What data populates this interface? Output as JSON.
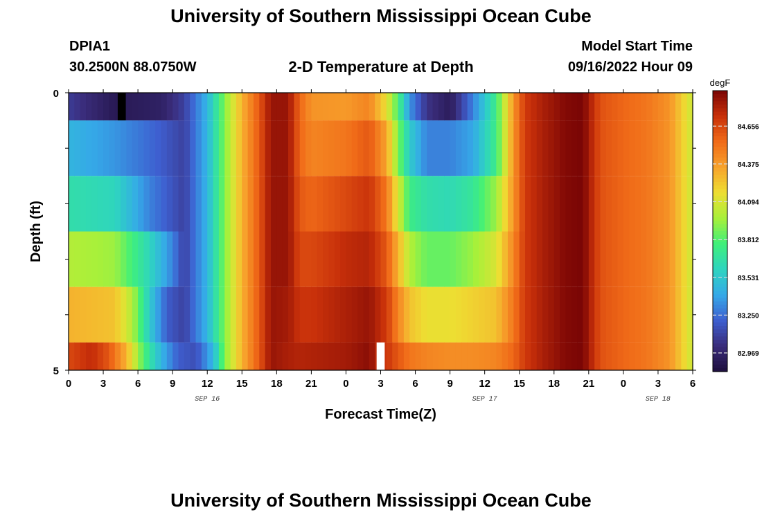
{
  "page": {
    "title_top": "University of Southern Mississippi Ocean Cube",
    "title_bottom": "University of Southern Mississippi Ocean Cube",
    "station_id": "DPIA1",
    "station_coords": "30.2500N  88.0750W",
    "plot_title": "2-D Temperature at Depth",
    "model_start_label": "Model Start Time",
    "model_start_value": "09/16/2022 Hour 09"
  },
  "chart_data": {
    "type": "heatmap",
    "title": "2-D Temperature at Depth",
    "xlabel": "Forecast Time(Z)",
    "ylabel": "Depth (ft)",
    "colorbar_unit": "degF",
    "colorbar_ticks": [
      82.969,
      83.25,
      83.531,
      83.812,
      84.094,
      84.375,
      84.656
    ],
    "color_range": [
      82.83,
      84.92
    ],
    "colors": [
      "#1e0f3e",
      "#3a2c7a",
      "#3e5fd0",
      "#35a9e8",
      "#2ed4c0",
      "#3ff07a",
      "#a8f03a",
      "#eede32",
      "#f7a22c",
      "#f06a18",
      "#c8300a",
      "#7a0505"
    ],
    "x_ticks": [
      "0",
      "3",
      "6",
      "9",
      "12",
      "15",
      "18",
      "21",
      "0",
      "3",
      "6",
      "9",
      "12",
      "15",
      "18",
      "21",
      "0",
      "3",
      "6"
    ],
    "x_range_hours": [
      0,
      54
    ],
    "date_labels": [
      {
        "label": "SEP 16",
        "hour": 12
      },
      {
        "label": "SEP 17",
        "hour": 36
      },
      {
        "label": "SEP 18",
        "hour": 51
      }
    ],
    "y_ticks": [
      "0",
      "5"
    ],
    "y_range": [
      0,
      5
    ],
    "grid": false,
    "layers": [
      {
        "depth_range": [
          0,
          0.5
        ],
        "profile": [
          [
            0,
            83.08
          ],
          [
            4,
            82.9
          ],
          [
            8,
            82.95
          ],
          [
            10,
            83.1
          ],
          [
            12,
            83.45
          ],
          [
            13.5,
            83.9
          ],
          [
            15,
            84.3
          ],
          [
            16.5,
            84.6
          ],
          [
            17.5,
            84.85
          ],
          [
            19,
            84.85
          ],
          [
            20,
            84.55
          ],
          [
            21,
            84.4
          ],
          [
            24,
            84.38
          ],
          [
            26,
            84.45
          ],
          [
            27.5,
            84.15
          ],
          [
            28.5,
            83.8
          ],
          [
            29.5,
            83.35
          ],
          [
            31,
            83.05
          ],
          [
            33,
            82.92
          ],
          [
            35,
            83.3
          ],
          [
            37,
            83.75
          ],
          [
            38.5,
            84.4
          ],
          [
            39.5,
            84.7
          ],
          [
            41,
            84.8
          ],
          [
            43,
            84.9
          ],
          [
            44.5,
            84.92
          ],
          [
            46,
            84.62
          ],
          [
            48,
            84.55
          ],
          [
            50,
            84.5
          ],
          [
            52,
            84.4
          ],
          [
            54,
            84.05
          ]
        ],
        "missing": [
          {
            "hour": 4.6,
            "value": "low"
          }
        ]
      },
      {
        "depth_range": [
          0.5,
          1.5
        ],
        "profile": [
          [
            0,
            83.45
          ],
          [
            4,
            83.35
          ],
          [
            8,
            83.2
          ],
          [
            10,
            83.1
          ],
          [
            12,
            83.45
          ],
          [
            13.5,
            83.9
          ],
          [
            15,
            84.3
          ],
          [
            16.5,
            84.6
          ],
          [
            17.5,
            84.85
          ],
          [
            19,
            84.85
          ],
          [
            20,
            84.55
          ],
          [
            21,
            84.45
          ],
          [
            24,
            84.5
          ],
          [
            26,
            84.6
          ],
          [
            27.5,
            84.35
          ],
          [
            28.5,
            83.9
          ],
          [
            29.5,
            83.55
          ],
          [
            31,
            83.3
          ],
          [
            33,
            83.3
          ],
          [
            35,
            83.4
          ],
          [
            37,
            83.75
          ],
          [
            38.5,
            84.4
          ],
          [
            39.5,
            84.7
          ],
          [
            41,
            84.8
          ],
          [
            43,
            84.9
          ],
          [
            44.5,
            84.92
          ],
          [
            46,
            84.62
          ],
          [
            48,
            84.55
          ],
          [
            50,
            84.5
          ],
          [
            52,
            84.4
          ],
          [
            54,
            84.05
          ]
        ]
      },
      {
        "depth_range": [
          1.5,
          2.5
        ],
        "profile": [
          [
            0,
            83.65
          ],
          [
            4,
            83.6
          ],
          [
            7,
            83.3
          ],
          [
            10,
            83.1
          ],
          [
            12,
            83.45
          ],
          [
            13.5,
            83.9
          ],
          [
            15,
            84.3
          ],
          [
            16.5,
            84.6
          ],
          [
            17.5,
            84.85
          ],
          [
            19,
            84.85
          ],
          [
            20,
            84.6
          ],
          [
            21,
            84.55
          ],
          [
            24,
            84.65
          ],
          [
            26,
            84.72
          ],
          [
            27.5,
            84.5
          ],
          [
            28.5,
            84.1
          ],
          [
            29.5,
            83.75
          ],
          [
            31,
            83.65
          ],
          [
            33,
            83.62
          ],
          [
            35,
            83.7
          ],
          [
            37,
            83.95
          ],
          [
            38.5,
            84.4
          ],
          [
            39.5,
            84.7
          ],
          [
            41,
            84.8
          ],
          [
            43,
            84.9
          ],
          [
            44.5,
            84.92
          ],
          [
            46,
            84.62
          ],
          [
            48,
            84.55
          ],
          [
            50,
            84.5
          ],
          [
            52,
            84.4
          ],
          [
            54,
            84.05
          ]
        ]
      },
      {
        "depth_range": [
          2.5,
          3.5
        ],
        "profile": [
          [
            0,
            84.0
          ],
          [
            4,
            83.95
          ],
          [
            7,
            83.6
          ],
          [
            9,
            83.3
          ],
          [
            10,
            83.1
          ],
          [
            12,
            83.45
          ],
          [
            13.5,
            83.9
          ],
          [
            15,
            84.3
          ],
          [
            16.5,
            84.6
          ],
          [
            17.5,
            84.85
          ],
          [
            19,
            84.85
          ],
          [
            20,
            84.65
          ],
          [
            21,
            84.65
          ],
          [
            24,
            84.75
          ],
          [
            26,
            84.78
          ],
          [
            27.5,
            84.6
          ],
          [
            28.5,
            84.3
          ],
          [
            29.5,
            84.0
          ],
          [
            31,
            83.85
          ],
          [
            33,
            83.85
          ],
          [
            35,
            83.95
          ],
          [
            37,
            84.1
          ],
          [
            38.5,
            84.45
          ],
          [
            39.5,
            84.7
          ],
          [
            41,
            84.8
          ],
          [
            43,
            84.9
          ],
          [
            44.5,
            84.92
          ],
          [
            46,
            84.62
          ],
          [
            48,
            84.55
          ],
          [
            50,
            84.5
          ],
          [
            52,
            84.4
          ],
          [
            54,
            84.05
          ]
        ]
      },
      {
        "depth_range": [
          3.5,
          4.5
        ],
        "profile": [
          [
            0,
            84.3
          ],
          [
            4,
            84.25
          ],
          [
            5.5,
            84.0
          ],
          [
            7,
            83.55
          ],
          [
            8.5,
            83.2
          ],
          [
            10,
            83.1
          ],
          [
            12,
            83.45
          ],
          [
            13.5,
            83.9
          ],
          [
            15,
            84.3
          ],
          [
            16.5,
            84.6
          ],
          [
            17.5,
            84.85
          ],
          [
            19,
            84.82
          ],
          [
            20,
            84.72
          ],
          [
            21,
            84.72
          ],
          [
            24,
            84.8
          ],
          [
            26,
            84.85
          ],
          [
            27.5,
            84.7
          ],
          [
            28.5,
            84.45
          ],
          [
            29.5,
            84.25
          ],
          [
            31,
            84.15
          ],
          [
            33,
            84.15
          ],
          [
            35,
            84.2
          ],
          [
            37,
            84.25
          ],
          [
            38.5,
            84.5
          ],
          [
            39.5,
            84.7
          ],
          [
            41,
            84.8
          ],
          [
            43,
            84.9
          ],
          [
            44.5,
            84.92
          ],
          [
            46,
            84.62
          ],
          [
            48,
            84.55
          ],
          [
            50,
            84.5
          ],
          [
            52,
            84.4
          ],
          [
            54,
            84.05
          ]
        ]
      },
      {
        "depth_range": [
          4.5,
          5
        ],
        "profile": [
          [
            0,
            84.65
          ],
          [
            2,
            84.75
          ],
          [
            3.5,
            84.6
          ],
          [
            5,
            84.3
          ],
          [
            6.5,
            83.8
          ],
          [
            8,
            83.45
          ],
          [
            9.5,
            83.2
          ],
          [
            11,
            83.15
          ],
          [
            12.5,
            83.45
          ],
          [
            13.5,
            83.9
          ],
          [
            15,
            84.3
          ],
          [
            16.5,
            84.6
          ],
          [
            17.5,
            84.85
          ],
          [
            19,
            84.8
          ],
          [
            20,
            84.78
          ],
          [
            22,
            84.8
          ],
          [
            24,
            84.82
          ],
          [
            26,
            84.88
          ],
          [
            27,
            84.72
          ],
          [
            27.5,
            84.72
          ],
          [
            28.5,
            84.6
          ],
          [
            29.5,
            84.5
          ],
          [
            31,
            84.45
          ],
          [
            33,
            84.42
          ],
          [
            35,
            84.42
          ],
          [
            37,
            84.45
          ],
          [
            38.5,
            84.55
          ],
          [
            39.5,
            84.7
          ],
          [
            41,
            84.8
          ],
          [
            43,
            84.9
          ],
          [
            44.5,
            84.92
          ],
          [
            46,
            84.62
          ],
          [
            48,
            84.55
          ],
          [
            50,
            84.5
          ],
          [
            52,
            84.4
          ],
          [
            54,
            84.05
          ]
        ],
        "missing": [
          {
            "hour": 27,
            "value": "high"
          }
        ]
      }
    ]
  }
}
